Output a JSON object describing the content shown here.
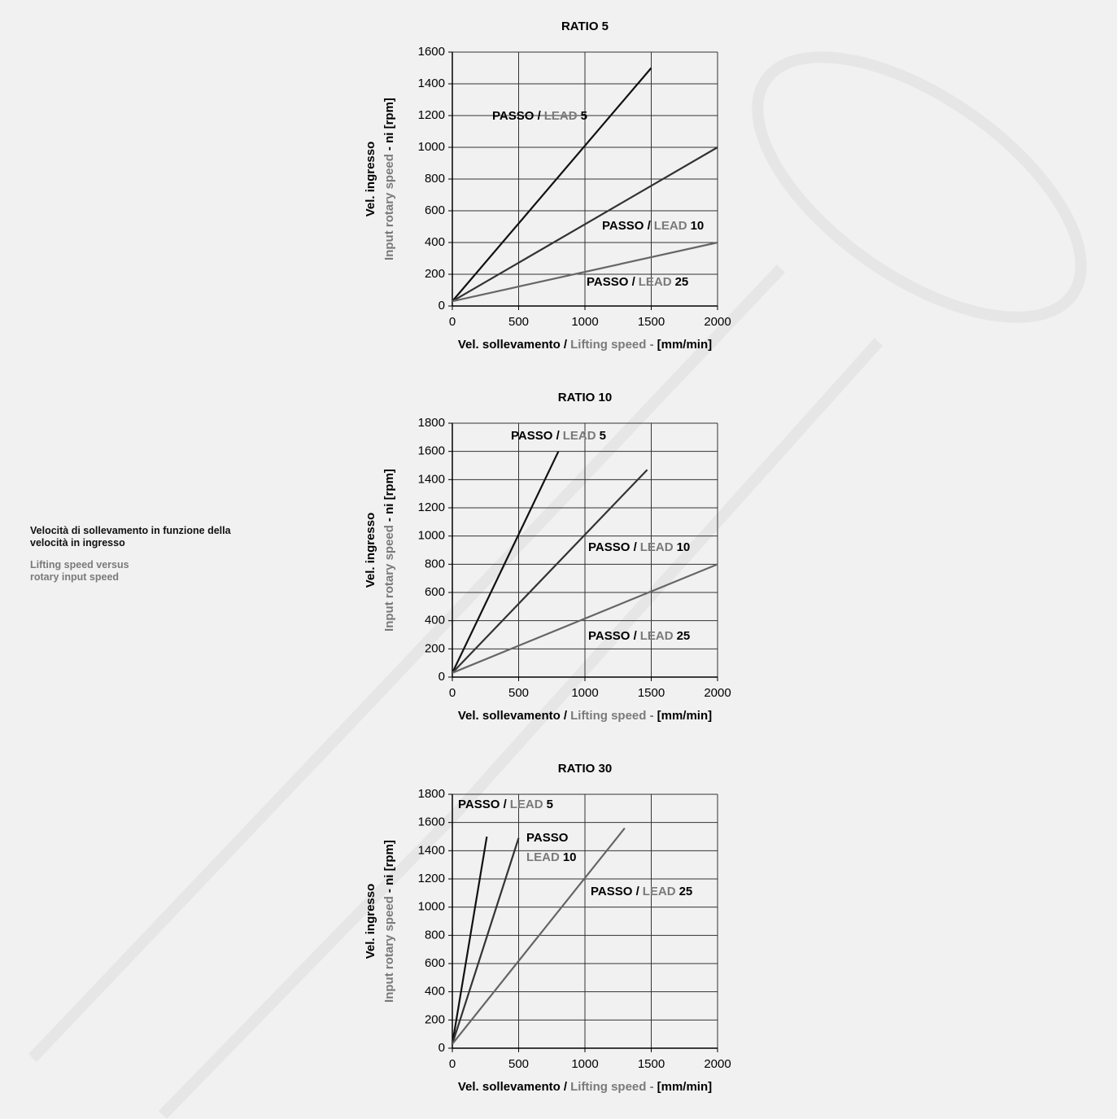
{
  "caption": {
    "it": "Velocità di sollevamento in funzione della velocità in ingresso",
    "en": "Lifting speed versus rotary input speed"
  },
  "chart_data": [
    {
      "type": "line",
      "title": "RATIO 5",
      "xlabel": [
        "Vel. sollevamento /",
        "Lifting speed -",
        "[mm/min]"
      ],
      "ylabel": [
        "Vel. ingresso",
        "Input rotary speed",
        "- ni [rpm]"
      ],
      "xlim": [
        0,
        2000
      ],
      "xticks": [
        0,
        500,
        1000,
        1500,
        2000
      ],
      "ylim": [
        0,
        1600
      ],
      "yticks": [
        0,
        200,
        400,
        600,
        800,
        1000,
        1200,
        1400,
        1600
      ],
      "grid": true,
      "series": [
        {
          "label": [
            "PASSO /",
            "LEAD",
            "5"
          ],
          "color": "#111111",
          "x": [
            0,
            1500
          ],
          "values": [
            30,
            1500
          ]
        },
        {
          "label": [
            "PASSO /",
            "LEAD",
            "10"
          ],
          "color": "#333333",
          "x": [
            0,
            2000
          ],
          "values": [
            30,
            1000
          ]
        },
        {
          "label": [
            "PASSO /",
            "LEAD",
            "25"
          ],
          "color": "#666666",
          "x": [
            0,
            2000
          ],
          "values": [
            30,
            400
          ]
        }
      ]
    },
    {
      "type": "line",
      "title": "RATIO 10",
      "xlabel": [
        "Vel. sollevamento /",
        "Lifting speed -",
        "[mm/min]"
      ],
      "ylabel": [
        "Vel. ingresso",
        "Input rotary speed",
        "- ni [rpm]"
      ],
      "xlim": [
        0,
        2000
      ],
      "xticks": [
        0,
        500,
        1000,
        1500,
        2000
      ],
      "ylim": [
        0,
        1800
      ],
      "yticks": [
        0,
        200,
        400,
        600,
        800,
        1000,
        1200,
        1400,
        1600,
        1800
      ],
      "grid": true,
      "series": [
        {
          "label": [
            "PASSO /",
            "LEAD",
            "5"
          ],
          "color": "#111111",
          "x": [
            0,
            800
          ],
          "values": [
            30,
            1600
          ]
        },
        {
          "label": [
            "PASSO /",
            "LEAD",
            "10"
          ],
          "color": "#333333",
          "x": [
            0,
            1470
          ],
          "values": [
            30,
            1470
          ]
        },
        {
          "label": [
            "PASSO /",
            "LEAD",
            "25"
          ],
          "color": "#666666",
          "x": [
            0,
            2000
          ],
          "values": [
            30,
            800
          ]
        }
      ]
    },
    {
      "type": "line",
      "title": "RATIO 30",
      "xlabel": [
        "Vel. sollevamento /",
        "Lifting speed -",
        "[mm/min]"
      ],
      "ylabel": [
        "Vel. ingresso",
        "Input rotary speed",
        "- ni [rpm]"
      ],
      "xlim": [
        0,
        2000
      ],
      "xticks": [
        0,
        500,
        1000,
        1500,
        2000
      ],
      "ylim": [
        0,
        1800
      ],
      "yticks": [
        0,
        200,
        400,
        600,
        800,
        1000,
        1200,
        1400,
        1600,
        1800
      ],
      "grid": true,
      "series": [
        {
          "label": [
            "PASSO /",
            "LEAD",
            "5"
          ],
          "color": "#111111",
          "x": [
            0,
            260
          ],
          "values": [
            30,
            1500
          ]
        },
        {
          "label": [
            "PASSO",
            "LEAD",
            "10"
          ],
          "color": "#333333",
          "x": [
            0,
            500
          ],
          "values": [
            30,
            1490
          ]
        },
        {
          "label": [
            "PASSO /",
            "LEAD",
            "25"
          ],
          "color": "#666666",
          "x": [
            0,
            1300
          ],
          "values": [
            30,
            1560
          ]
        }
      ]
    }
  ]
}
